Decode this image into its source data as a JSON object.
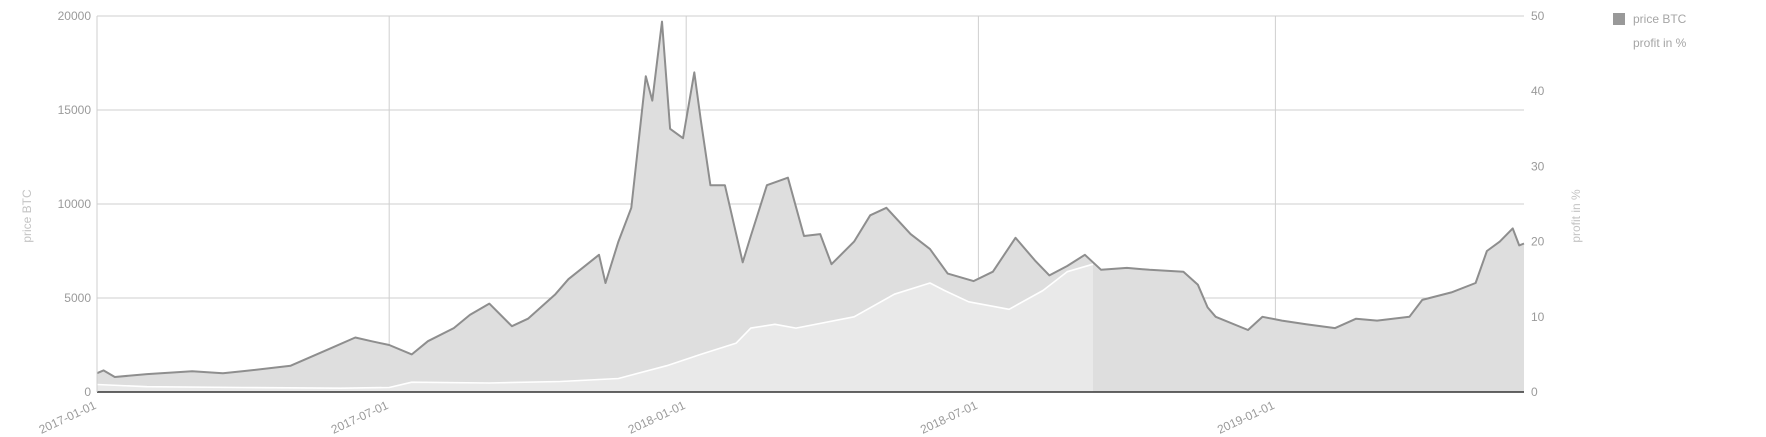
{
  "colors": {
    "price_line": "#8e8e8e",
    "price_fill": "#dedede",
    "profit_line": "#ffffff",
    "profit_fill": "#e9e9e9",
    "grid": "#cfcfcf",
    "tick_text": "#9a9a9a",
    "axis_title": "#c4c4c4"
  },
  "legend": [
    {
      "label": "price BTC",
      "swatch_color": "#999999"
    },
    {
      "label": "profit in %",
      "swatch_color": "#ffffff"
    }
  ],
  "chart_data": {
    "type": "area",
    "xlabel": "",
    "ylabel": "price BTC",
    "y2label": "profit in %",
    "xlim": [
      "2017-01-01",
      "2019-06-04"
    ],
    "ylim": [
      0,
      20000
    ],
    "y2lim": [
      0,
      50
    ],
    "x_ticks": [
      "2017-01-01",
      "2017-07-01",
      "2018-01-01",
      "2018-07-01",
      "2019-01-01"
    ],
    "y_ticks": [
      "0",
      "5000",
      "10000",
      "15000",
      "20000"
    ],
    "y2_ticks": [
      "0",
      "10",
      "20",
      "30",
      "40",
      "50"
    ],
    "grid": true,
    "legend_position": "top-right",
    "series": [
      {
        "name": "price BTC",
        "axis": "left",
        "points": [
          [
            "2017-01-01",
            1000
          ],
          [
            "2017-01-05",
            1150
          ],
          [
            "2017-01-12",
            800
          ],
          [
            "2017-02-01",
            950
          ],
          [
            "2017-03-01",
            1100
          ],
          [
            "2017-03-20",
            1000
          ],
          [
            "2017-04-01",
            1100
          ],
          [
            "2017-05-01",
            1400
          ],
          [
            "2017-05-25",
            2300
          ],
          [
            "2017-06-10",
            2900
          ],
          [
            "2017-06-20",
            2700
          ],
          [
            "2017-07-01",
            2500
          ],
          [
            "2017-07-15",
            2000
          ],
          [
            "2017-07-25",
            2700
          ],
          [
            "2017-08-10",
            3400
          ],
          [
            "2017-08-20",
            4100
          ],
          [
            "2017-09-01",
            4700
          ],
          [
            "2017-09-15",
            3500
          ],
          [
            "2017-09-25",
            3900
          ],
          [
            "2017-10-12",
            5200
          ],
          [
            "2017-10-20",
            6000
          ],
          [
            "2017-11-08",
            7300
          ],
          [
            "2017-11-12",
            5800
          ],
          [
            "2017-11-20",
            8000
          ],
          [
            "2017-11-28",
            9800
          ],
          [
            "2017-12-07",
            16800
          ],
          [
            "2017-12-11",
            15500
          ],
          [
            "2017-12-17",
            19700
          ],
          [
            "2017-12-22",
            14000
          ],
          [
            "2017-12-30",
            13500
          ],
          [
            "2018-01-06",
            17000
          ],
          [
            "2018-01-10",
            14500
          ],
          [
            "2018-01-16",
            11000
          ],
          [
            "2018-01-25",
            11000
          ],
          [
            "2018-02-05",
            6900
          ],
          [
            "2018-02-10",
            8300
          ],
          [
            "2018-02-20",
            11000
          ],
          [
            "2018-03-05",
            11400
          ],
          [
            "2018-03-15",
            8300
          ],
          [
            "2018-03-25",
            8400
          ],
          [
            "2018-04-01",
            6800
          ],
          [
            "2018-04-15",
            8000
          ],
          [
            "2018-04-25",
            9400
          ],
          [
            "2018-05-05",
            9800
          ],
          [
            "2018-05-20",
            8400
          ],
          [
            "2018-06-01",
            7600
          ],
          [
            "2018-06-12",
            6300
          ],
          [
            "2018-06-28",
            5900
          ],
          [
            "2018-07-10",
            6400
          ],
          [
            "2018-07-24",
            8200
          ],
          [
            "2018-08-05",
            7000
          ],
          [
            "2018-08-14",
            6200
          ],
          [
            "2018-08-25",
            6700
          ],
          [
            "2018-09-05",
            7300
          ],
          [
            "2018-09-15",
            6500
          ],
          [
            "2018-10-01",
            6600
          ],
          [
            "2018-10-15",
            6500
          ],
          [
            "2018-11-05",
            6400
          ],
          [
            "2018-11-14",
            5700
          ],
          [
            "2018-11-20",
            4500
          ],
          [
            "2018-11-25",
            4000
          ],
          [
            "2018-12-15",
            3300
          ],
          [
            "2018-12-24",
            4000
          ],
          [
            "2019-01-05",
            3800
          ],
          [
            "2019-01-20",
            3600
          ],
          [
            "2019-02-07",
            3400
          ],
          [
            "2019-02-20",
            3900
          ],
          [
            "2019-03-05",
            3800
          ],
          [
            "2019-03-25",
            4000
          ],
          [
            "2019-04-02",
            4900
          ],
          [
            "2019-04-20",
            5300
          ],
          [
            "2019-05-05",
            5800
          ],
          [
            "2019-05-12",
            7500
          ],
          [
            "2019-05-20",
            8000
          ],
          [
            "2019-05-28",
            8700
          ],
          [
            "2019-06-01",
            7800
          ],
          [
            "2019-06-04",
            7900
          ]
        ]
      },
      {
        "name": "profit in %",
        "axis": "right",
        "points": [
          [
            "2017-01-01",
            1.0
          ],
          [
            "2017-02-01",
            0.7
          ],
          [
            "2017-04-01",
            0.6
          ],
          [
            "2017-06-01",
            0.5
          ],
          [
            "2017-07-01",
            0.6
          ],
          [
            "2017-07-15",
            1.3
          ],
          [
            "2017-09-01",
            1.2
          ],
          [
            "2017-10-15",
            1.4
          ],
          [
            "2017-11-20",
            1.8
          ],
          [
            "2017-12-20",
            3.5
          ],
          [
            "2018-01-10",
            5.0
          ],
          [
            "2018-02-01",
            6.5
          ],
          [
            "2018-02-10",
            8.5
          ],
          [
            "2018-02-25",
            9.0
          ],
          [
            "2018-03-10",
            8.5
          ],
          [
            "2018-04-15",
            10.0
          ],
          [
            "2018-05-10",
            13.0
          ],
          [
            "2018-06-01",
            14.5
          ],
          [
            "2018-06-10",
            13.5
          ],
          [
            "2018-06-25",
            12.0
          ],
          [
            "2018-07-20",
            11.0
          ],
          [
            "2018-08-10",
            13.5
          ],
          [
            "2018-08-25",
            16.0
          ],
          [
            "2018-09-10",
            17.0
          ]
        ]
      }
    ]
  }
}
